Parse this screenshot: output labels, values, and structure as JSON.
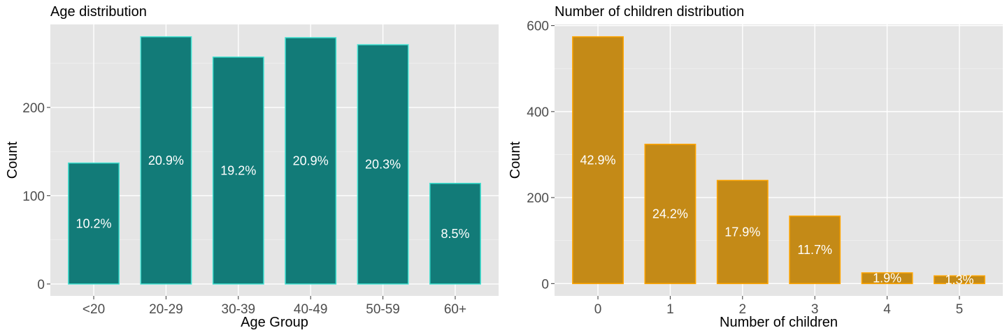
{
  "chart_data": [
    {
      "type": "bar",
      "title": "Age distribution",
      "xlabel": "Age Group",
      "ylabel": "Count",
      "categories": [
        "<20",
        "20-29",
        "30-39",
        "40-49",
        "50-59",
        "60+"
      ],
      "values": [
        137,
        280,
        257,
        279,
        271,
        114
      ],
      "labels": [
        "10.2%",
        "20.9%",
        "19.2%",
        "20.9%",
        "20.3%",
        "8.5%"
      ],
      "yticks": [
        0,
        100,
        200
      ],
      "ylim": [
        -13.5,
        294
      ],
      "grid": true,
      "colors": {
        "fill": "#127B78",
        "stroke": "#40E0D0",
        "panel": "#E5E5E5"
      }
    },
    {
      "type": "bar",
      "title": "Number of children distribution",
      "xlabel": "Number of children",
      "ylabel": "Count",
      "categories": [
        "0",
        "1",
        "2",
        "3",
        "4",
        "5"
      ],
      "values": [
        574,
        324,
        240,
        157,
        25,
        18
      ],
      "labels": [
        "42.9%",
        "24.2%",
        "17.9%",
        "11.7%",
        "1.9%",
        "1.3%"
      ],
      "yticks": [
        0,
        200,
        400,
        600
      ],
      "ylim": [
        -28.7,
        602.7
      ],
      "grid": true,
      "colors": {
        "fill": "#C48A17",
        "stroke": "#FFA500",
        "panel": "#E5E5E5"
      }
    }
  ]
}
